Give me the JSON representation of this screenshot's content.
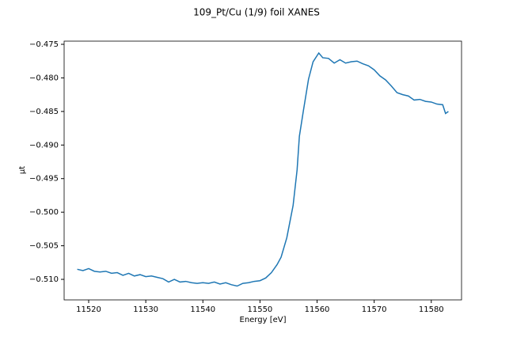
{
  "chart_data": {
    "type": "line",
    "title": "109_Pt/Cu (1/9) foil XANES",
    "xlabel": "Energy [eV]",
    "ylabel": "μt",
    "x": [
      11518,
      11519,
      11520,
      11521,
      11522,
      11523,
      11524,
      11525,
      11526,
      11527,
      11528,
      11529,
      11530,
      11531,
      11532,
      11533,
      11534,
      11535,
      11536,
      11537,
      11538,
      11539,
      11540,
      11541,
      11542,
      11543,
      11544,
      11545,
      11546,
      11547,
      11548,
      11549,
      11550,
      11551,
      11552,
      11553,
      11553.7,
      11554.7,
      11555.8,
      11556.5,
      11556.9,
      11557.6,
      11558.5,
      11559.3,
      11560.3,
      11561,
      11562,
      11563,
      11564,
      11565,
      11566,
      11567,
      11568,
      11569,
      11570,
      11571,
      11572,
      11573,
      11574,
      11575,
      11576,
      11577,
      11578,
      11579,
      11580,
      11581,
      11582,
      11582.5,
      11583
    ],
    "series": [
      {
        "name": "μt",
        "color": "#1f77b4",
        "values": [
          -0.5085,
          -0.5087,
          -0.5084,
          -0.5088,
          -0.5089,
          -0.5088,
          -0.5091,
          -0.509,
          -0.5094,
          -0.5091,
          -0.5095,
          -0.5093,
          -0.5096,
          -0.5095,
          -0.5097,
          -0.5099,
          -0.5104,
          -0.51,
          -0.5104,
          -0.5103,
          -0.5105,
          -0.5106,
          -0.5105,
          -0.5106,
          -0.5104,
          -0.5107,
          -0.5105,
          -0.5108,
          -0.511,
          -0.5106,
          -0.5105,
          -0.5103,
          -0.5102,
          -0.5098,
          -0.509,
          -0.5078,
          -0.5067,
          -0.5038,
          -0.499,
          -0.4937,
          -0.4887,
          -0.4849,
          -0.4802,
          -0.4776,
          -0.4763,
          -0.477,
          -0.4771,
          -0.4778,
          -0.4773,
          -0.4778,
          -0.4776,
          -0.4775,
          -0.4779,
          -0.4782,
          -0.4788,
          -0.4797,
          -0.4803,
          -0.4812,
          -0.4822,
          -0.4825,
          -0.4827,
          -0.4833,
          -0.4832,
          -0.4835,
          -0.4836,
          -0.4839,
          -0.484,
          -0.4853,
          -0.485
        ]
      }
    ],
    "xlim": [
      11515.7,
      11585.3
    ],
    "ylim": [
      -0.51306,
      -0.47453
    ],
    "xticks": [
      11520,
      11530,
      11540,
      11550,
      11560,
      11570,
      11580
    ],
    "yticks": [
      {
        "value": -0.51,
        "label": "−0.510"
      },
      {
        "value": -0.505,
        "label": "−0.505"
      },
      {
        "value": -0.5,
        "label": "−0.500"
      },
      {
        "value": -0.495,
        "label": "−0.495"
      },
      {
        "value": -0.49,
        "label": "−0.490"
      },
      {
        "value": -0.485,
        "label": "−0.485"
      },
      {
        "value": -0.48,
        "label": "−0.480"
      },
      {
        "value": -0.475,
        "label": "−0.475"
      }
    ]
  }
}
